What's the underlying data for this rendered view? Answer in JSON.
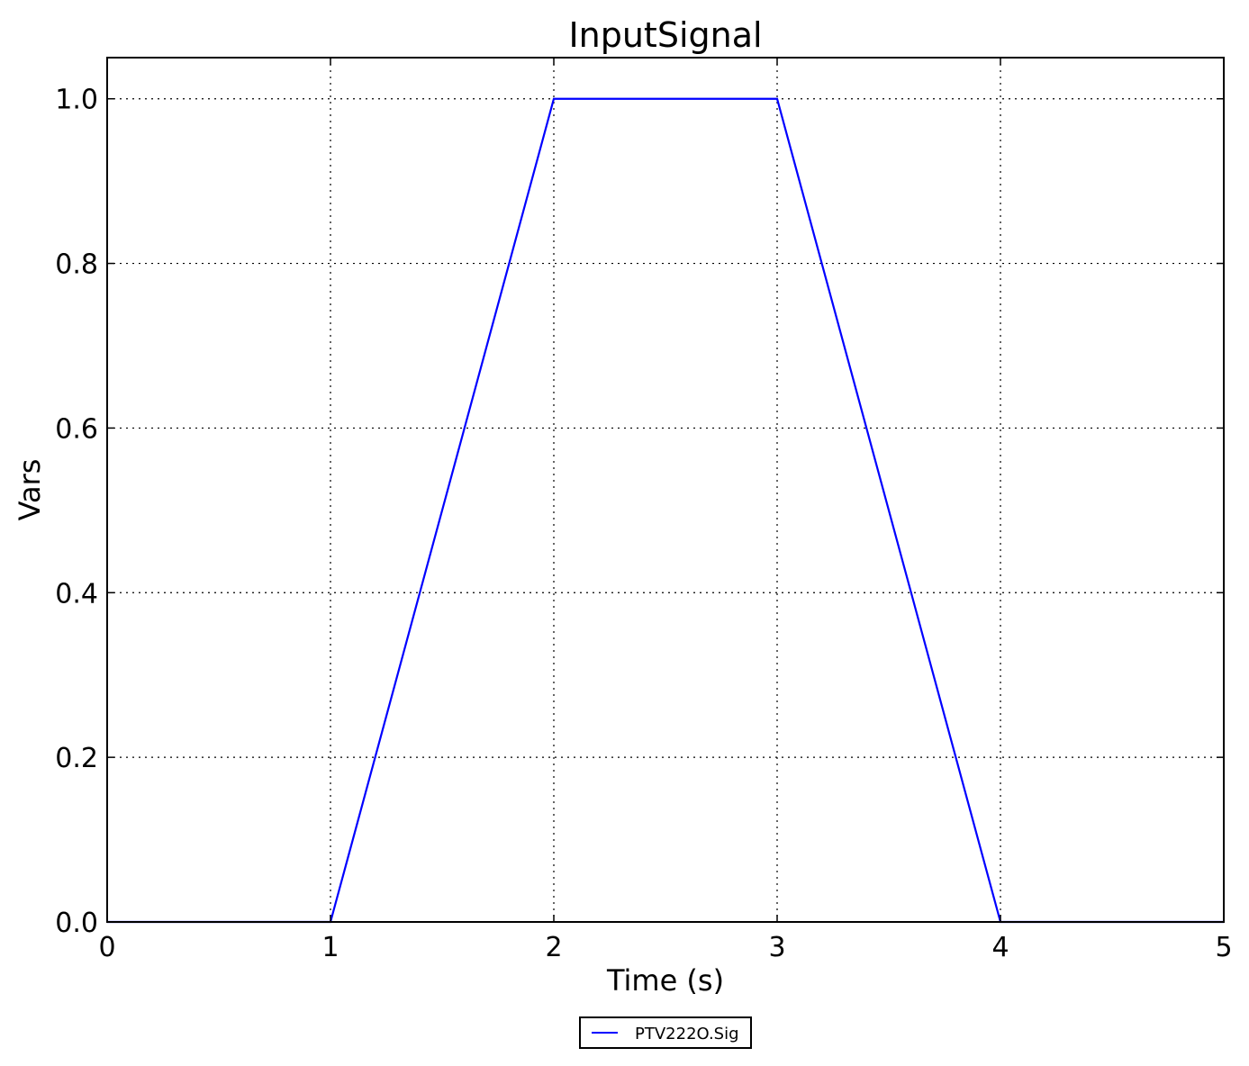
{
  "chart_data": {
    "type": "line",
    "title": "InputSignal",
    "xlabel": "Time (s)",
    "ylabel": "Vars",
    "xlim": [
      0,
      5
    ],
    "ylim": [
      0,
      1.05
    ],
    "xticks": [
      0,
      1,
      2,
      3,
      4,
      5
    ],
    "xtick_labels": [
      "0",
      "1",
      "2",
      "3",
      "4",
      "5"
    ],
    "yticks": [
      0,
      0.2,
      0.4,
      0.6,
      0.8,
      1.0
    ],
    "ytick_labels": [
      "0.0",
      "0.2",
      "0.4",
      "0.6",
      "0.8",
      "1.0"
    ],
    "grid": true,
    "legend_position": "bottom-center, below axes",
    "series": [
      {
        "name": "PTV222O.Sig",
        "color": "#0000ff",
        "x": [
          0,
          1,
          2,
          3,
          4,
          5
        ],
        "y": [
          0,
          0,
          1,
          1,
          0,
          0
        ]
      }
    ]
  }
}
